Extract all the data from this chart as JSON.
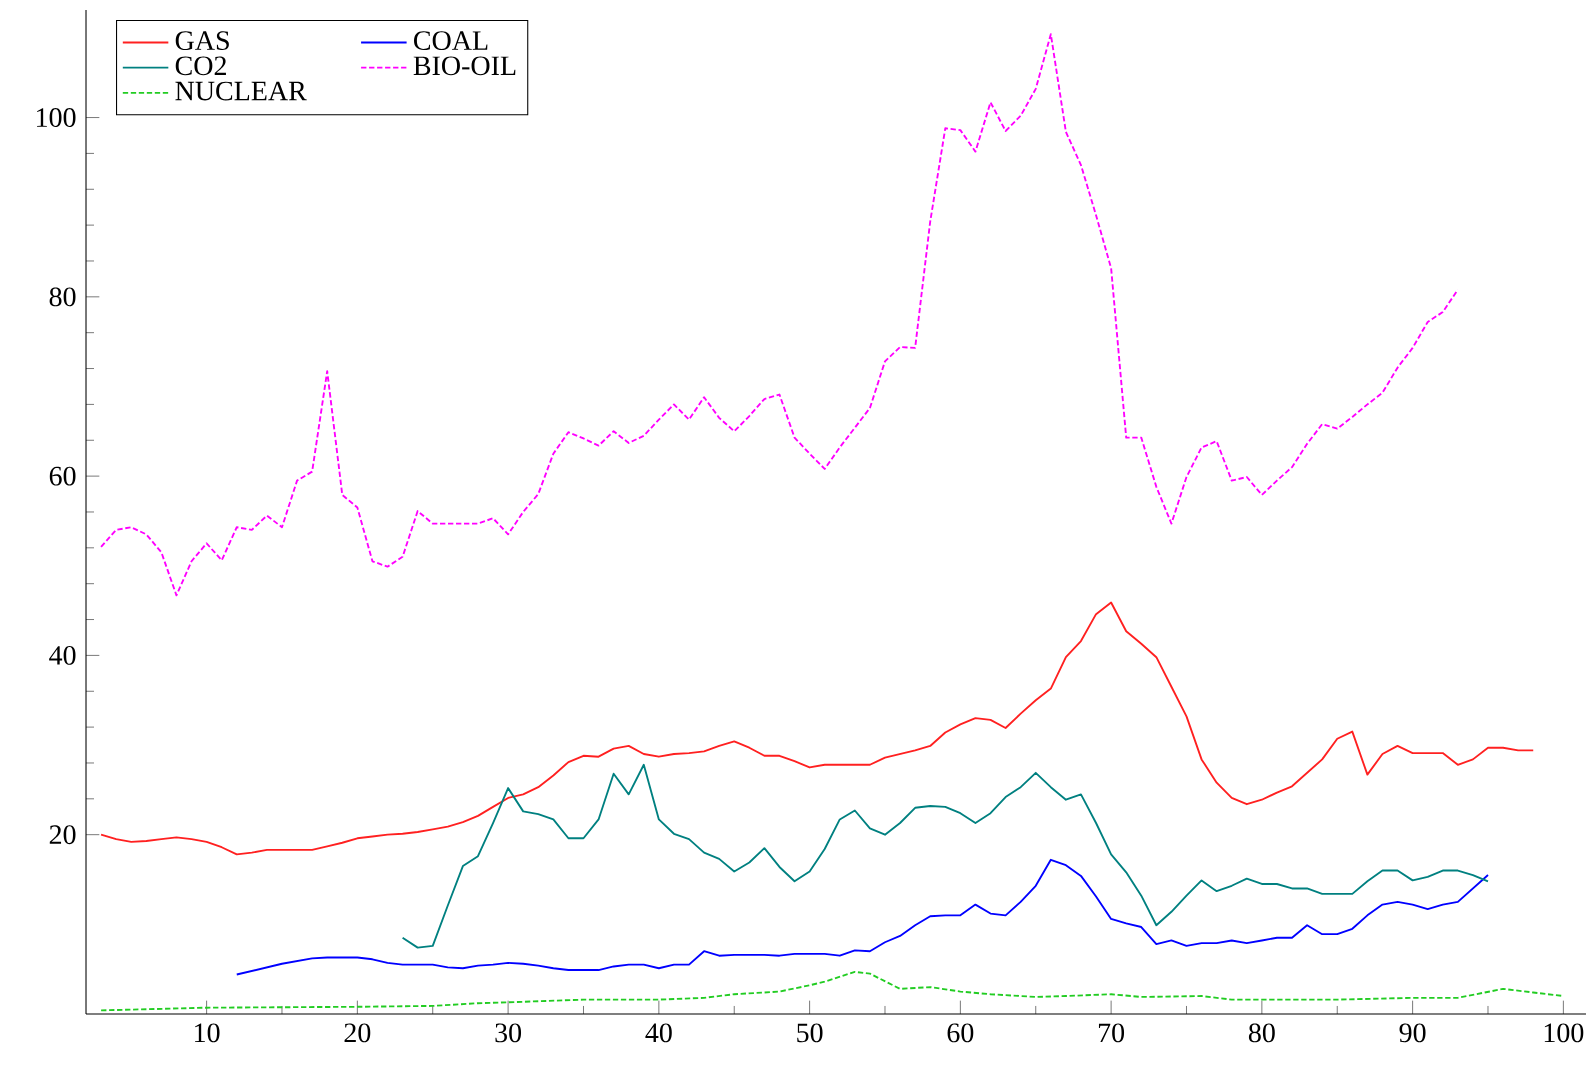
{
  "chart_data": {
    "type": "line",
    "xlim": [
      2,
      101.5
    ],
    "ylim": [
      0,
      112
    ],
    "xticks": [
      10,
      20,
      30,
      40,
      50,
      60,
      70,
      80,
      90,
      100
    ],
    "yticks": [
      20,
      40,
      60,
      80,
      100
    ],
    "grid": false,
    "legend": "top left",
    "marker": "none",
    "series": [
      {
        "name": "GAS",
        "color": "#ff2020",
        "line_style": "solid",
        "x": [
          3,
          4,
          5,
          6,
          7,
          8,
          9,
          10,
          11,
          12,
          13,
          14,
          15,
          16,
          17,
          18,
          19,
          20,
          21,
          22,
          23,
          24,
          25,
          26,
          27,
          28,
          29,
          30,
          31,
          32,
          33,
          34,
          35,
          36,
          37,
          38,
          39,
          40,
          41,
          42,
          43,
          44,
          45,
          46,
          47,
          48,
          49,
          50,
          51,
          52,
          53,
          54,
          55,
          56,
          57,
          58,
          59,
          60,
          61,
          62,
          63,
          64,
          65,
          66,
          67,
          68,
          69,
          70,
          71,
          72,
          73,
          74,
          75,
          76,
          77,
          78,
          79,
          80,
          81,
          82,
          83,
          84,
          85,
          86,
          87,
          88,
          89,
          90,
          91,
          92,
          93,
          94,
          95,
          96,
          97,
          98
        ],
        "values": [
          20.0,
          19.5,
          19.2,
          19.3,
          19.5,
          19.7,
          19.5,
          19.2,
          18.6,
          17.8,
          18.0,
          18.3,
          18.3,
          18.3,
          18.3,
          18.7,
          19.1,
          19.6,
          19.8,
          20.0,
          20.1,
          20.3,
          20.6,
          20.9,
          21.4,
          22.1,
          23.1,
          24.1,
          24.5,
          25.3,
          26.6,
          28.1,
          28.8,
          28.7,
          29.6,
          29.9,
          29.0,
          28.7,
          29.0,
          29.1,
          29.3,
          29.9,
          30.4,
          29.7,
          28.8,
          28.8,
          28.2,
          27.5,
          27.8,
          27.8,
          27.8,
          27.8,
          28.6,
          29.0,
          29.4,
          29.9,
          31.4,
          32.3,
          33.0,
          32.8,
          31.9,
          33.5,
          35.0,
          36.3,
          39.8,
          41.6,
          44.6,
          45.9,
          42.7,
          41.3,
          39.8,
          36.5,
          33.2,
          28.4,
          25.8,
          24.1,
          23.4,
          23.9,
          24.7,
          25.4,
          26.9,
          28.4,
          30.7,
          31.5,
          26.7,
          29.0,
          29.9,
          29.1,
          29.1,
          29.1,
          27.8,
          28.4,
          29.7,
          29.7,
          29.4,
          29.4
        ]
      },
      {
        "name": "COAL",
        "color": "#0000ff",
        "line_style": "solid",
        "x": [
          12,
          13,
          14,
          15,
          16,
          17,
          18,
          19,
          20,
          21,
          22,
          23,
          24,
          25,
          26,
          27,
          28,
          29,
          30,
          31,
          32,
          33,
          34,
          35,
          36,
          37,
          38,
          39,
          40,
          41,
          42,
          43,
          44,
          45,
          46,
          47,
          48,
          49,
          50,
          51,
          52,
          53,
          54,
          55,
          56,
          57,
          58,
          59,
          60,
          61,
          62,
          63,
          64,
          65,
          66,
          67,
          68,
          69,
          70,
          71,
          72,
          73,
          74,
          75,
          76,
          77,
          78,
          79,
          80,
          81,
          82,
          83,
          84,
          85,
          86,
          87,
          88,
          89,
          90,
          91,
          92,
          93,
          94,
          95
        ],
        "values": [
          4.4,
          4.8,
          5.2,
          5.6,
          5.9,
          6.2,
          6.3,
          6.3,
          6.3,
          6.1,
          5.7,
          5.5,
          5.5,
          5.5,
          5.2,
          5.1,
          5.4,
          5.5,
          5.7,
          5.6,
          5.4,
          5.1,
          4.9,
          4.9,
          4.9,
          5.3,
          5.5,
          5.5,
          5.1,
          5.5,
          5.5,
          7.0,
          6.5,
          6.6,
          6.6,
          6.6,
          6.5,
          6.7,
          6.7,
          6.7,
          6.5,
          7.1,
          7.0,
          8.0,
          8.7,
          9.9,
          10.9,
          11.0,
          11.0,
          12.2,
          11.2,
          11.0,
          12.5,
          14.3,
          17.2,
          16.6,
          15.4,
          13.1,
          10.6,
          10.1,
          9.7,
          7.8,
          8.2,
          7.6,
          7.9,
          7.9,
          8.2,
          7.9,
          8.2,
          8.5,
          8.5,
          9.9,
          8.9,
          8.9,
          9.5,
          11.0,
          12.2,
          12.5,
          12.2,
          11.7,
          12.2,
          12.5,
          14.0,
          15.5
        ]
      },
      {
        "name": "CO2",
        "color": "#008080",
        "line_style": "solid",
        "x": [
          23,
          24,
          25,
          26,
          27,
          28,
          29,
          30,
          31,
          32,
          33,
          34,
          35,
          36,
          37,
          38,
          39,
          40,
          41,
          42,
          43,
          44,
          45,
          46,
          47,
          48,
          49,
          50,
          51,
          52,
          53,
          54,
          55,
          56,
          57,
          58,
          59,
          60,
          61,
          62,
          63,
          64,
          65,
          66,
          67,
          68,
          69,
          70,
          71,
          72,
          73,
          74,
          75,
          76,
          77,
          78,
          79,
          80,
          81,
          82,
          83,
          84,
          85,
          86,
          87,
          88,
          89,
          90,
          91,
          92,
          93,
          94,
          95
        ],
        "values": [
          8.5,
          7.4,
          7.6,
          12.1,
          16.5,
          17.6,
          21.3,
          25.2,
          22.6,
          22.3,
          21.7,
          19.6,
          19.6,
          21.7,
          26.8,
          24.5,
          27.8,
          21.7,
          20.1,
          19.5,
          18.0,
          17.3,
          15.9,
          16.9,
          18.5,
          16.4,
          14.8,
          15.9,
          18.4,
          21.7,
          22.7,
          20.7,
          20.0,
          21.3,
          23.0,
          23.2,
          23.1,
          22.4,
          21.3,
          22.4,
          24.2,
          25.3,
          26.9,
          25.3,
          23.9,
          24.5,
          21.3,
          17.8,
          15.8,
          13.2,
          9.9,
          11.4,
          13.2,
          14.9,
          13.7,
          14.3,
          15.1,
          14.5,
          14.5,
          14.0,
          14.0,
          13.4,
          13.4,
          13.4,
          14.8,
          16.0,
          16.0,
          14.9,
          15.3,
          16.0,
          16.0,
          15.5,
          14.8
        ]
      },
      {
        "name": "BIO-OIL",
        "color": "#ff00ff",
        "line_style": "dashed",
        "x": [
          3,
          4,
          5,
          6,
          7,
          8,
          9,
          10,
          11,
          12,
          13,
          14,
          15,
          16,
          17,
          18,
          19,
          20,
          21,
          22,
          23,
          24,
          25,
          26,
          27,
          28,
          29,
          30,
          31,
          32,
          33,
          34,
          35,
          36,
          37,
          38,
          39,
          40,
          41,
          42,
          43,
          44,
          45,
          46,
          47,
          48,
          49,
          50,
          51,
          52,
          53,
          54,
          55,
          56,
          57,
          58,
          59,
          60,
          61,
          62,
          63,
          64,
          65,
          66,
          67,
          68,
          69,
          70,
          71,
          72,
          73,
          74,
          75,
          76,
          77,
          78,
          79,
          80,
          81,
          82,
          83,
          84,
          85,
          86,
          87,
          88,
          89,
          90,
          91,
          92,
          93
        ],
        "values": [
          52.1,
          54.0,
          54.3,
          53.5,
          51.5,
          46.7,
          50.5,
          52.5,
          50.6,
          54.3,
          54.0,
          55.6,
          54.3,
          59.5,
          60.5,
          71.7,
          57.9,
          56.5,
          50.5,
          49.9,
          51.0,
          56.1,
          54.7,
          54.7,
          54.7,
          54.7,
          55.3,
          53.5,
          56.0,
          58.0,
          62.5,
          64.9,
          64.2,
          63.4,
          65.0,
          63.7,
          64.5,
          66.3,
          68.0,
          66.3,
          68.8,
          66.5,
          65.0,
          66.7,
          68.6,
          69.1,
          64.3,
          62.5,
          60.8,
          63.2,
          65.4,
          67.6,
          72.8,
          74.4,
          74.3,
          88.4,
          98.8,
          98.6,
          96.2,
          101.7,
          98.5,
          100.2,
          103.2,
          109.3,
          98.4,
          94.7,
          89.1,
          83.2,
          64.3,
          64.3,
          58.8,
          54.7,
          59.9,
          63.2,
          63.9,
          59.5,
          59.9,
          57.9,
          59.5,
          61.0,
          63.6,
          65.8,
          65.3,
          66.6,
          68.0,
          69.3,
          72.1,
          74.3,
          77.2,
          78.3,
          80.8
        ]
      },
      {
        "name": "NUCLEAR",
        "color": "#22cc22",
        "line_style": "dashed",
        "x": [
          3,
          10,
          20,
          25,
          28,
          30,
          35,
          40,
          43,
          45,
          48,
          50,
          51,
          53,
          54,
          56,
          58,
          60,
          62,
          65,
          67,
          70,
          72,
          76,
          78,
          85,
          90,
          93,
          96,
          98,
          100
        ],
        "values": [
          0.4,
          0.7,
          0.8,
          0.9,
          1.2,
          1.3,
          1.6,
          1.6,
          1.8,
          2.2,
          2.5,
          3.2,
          3.6,
          4.7,
          4.5,
          2.8,
          3.0,
          2.5,
          2.2,
          1.9,
          2.0,
          2.2,
          1.9,
          2.0,
          1.6,
          1.6,
          1.8,
          1.8,
          2.8,
          2.4,
          2.0
        ]
      }
    ]
  }
}
